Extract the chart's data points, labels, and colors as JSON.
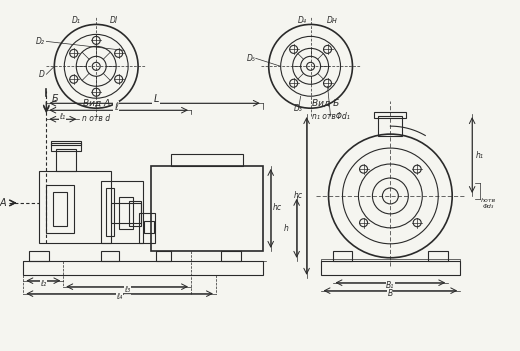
{
  "bg_color": "#f5f5f0",
  "line_color": "#2a2a2a",
  "title": "",
  "lw": 0.8,
  "lw_thick": 1.2,
  "lw_thin": 0.5,
  "dim_color": "#333333",
  "labels": {
    "B_label": "Б",
    "A_label": "А",
    "L": "L",
    "l": "ℓ",
    "l1": "ℓ₁",
    "l2": "ℓ₂",
    "l3": "ℓ₃",
    "l4": "ℓ₄",
    "h1": "h₁",
    "hc": "hc",
    "h": "h",
    "B": "B",
    "B1": "B₁",
    "h_bolt": "hотв",
    "phi_d3": "Φd₃",
    "D1": "D₁",
    "D2": "D₂",
    "D": "D",
    "Dl": "Dl",
    "n_d": "n отв d",
    "D4": "D₄",
    "D5": "D₅",
    "D3": "D₃",
    "Dn": "Dн",
    "n1_d1": "n₁ отвΦd₁",
    "vid_A": "Вид А",
    "vid_B": "Вид Б"
  }
}
